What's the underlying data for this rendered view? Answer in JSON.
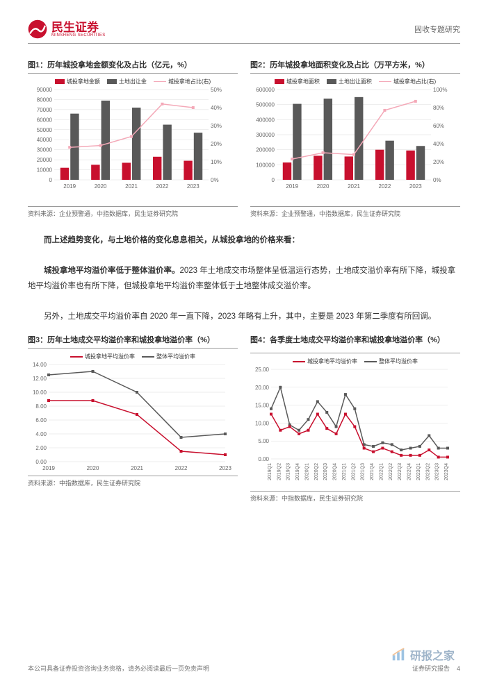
{
  "header": {
    "logo_main": "民生证券",
    "logo_sub": "MINSHENG SECURITIES",
    "right": "固收专题研究"
  },
  "chart1": {
    "title": "图1：历年城投拿地金额变化及占比（亿元，%）",
    "legend": [
      "城投拿地金额",
      "土地出让金",
      "城投拿地占比(右)"
    ],
    "categories": [
      "2019",
      "2020",
      "2021",
      "2022",
      "2023"
    ],
    "bar1": [
      12000,
      15000,
      17000,
      23000,
      19000
    ],
    "bar2": [
      66000,
      79000,
      72000,
      55000,
      47000
    ],
    "line": [
      18,
      19,
      24,
      42,
      40
    ],
    "yLeft": {
      "max": 90000,
      "step": 10000
    },
    "yRight": {
      "max": 50,
      "step": 10,
      "suffix": "%"
    },
    "colors": {
      "bar1": "#c8102e",
      "bar2": "#595959",
      "line": "#f4a9b8"
    },
    "source": "资料来源：企业预警通，中指数据库，民生证券研究院"
  },
  "chart2": {
    "title": "图2：历年城投拿地面积变化及占比（万平方米，%）",
    "legend": [
      "城投拿地面积",
      "土地出让面积",
      "城投拿地占比(右)"
    ],
    "categories": [
      "2019",
      "2020",
      "2021",
      "2022",
      "2023"
    ],
    "bar1": [
      115000,
      160000,
      155000,
      200000,
      195000
    ],
    "bar2": [
      505000,
      540000,
      550000,
      260000,
      225000
    ],
    "line": [
      23,
      30,
      28,
      77,
      87
    ],
    "yLeft": {
      "max": 600000,
      "step": 100000
    },
    "yRight": {
      "max": 100,
      "step": 20,
      "suffix": "%"
    },
    "colors": {
      "bar1": "#c8102e",
      "bar2": "#595959",
      "line": "#f4a9b8"
    },
    "source": "资料来源：企业预警通，中指数据库，民生证券研究院"
  },
  "body": {
    "p1": "而上述趋势变化，与土地价格的变化息息相关，从城投拿地的价格来看：",
    "p2_b": "城投拿地平均溢价率低于整体溢价率。",
    "p2_rest": "2023 年土地成交市场整体呈低温运行态势，土地成交溢价率有所下降，城投拿地平均溢价率也有所下降，但城投拿地平均溢价率整体低于土地整体成交溢价率。",
    "p3": "另外，土地成交平均溢价率自 2020 年一直下降，2023 年略有上升，其中，主要是 2023 年第二季度有所回调。"
  },
  "chart3": {
    "title": "图3：历年土地成交平均溢价率和城投拿地溢价率（%）",
    "legend": [
      "城投拿地平均溢价率",
      "整体平均溢价率"
    ],
    "categories": [
      "2019",
      "2020",
      "2021",
      "2022",
      "2023"
    ],
    "line_red": [
      8.8,
      8.8,
      6.8,
      1.5,
      1.0
    ],
    "line_gray": [
      12.5,
      13.0,
      10.0,
      3.5,
      4.0
    ],
    "y": {
      "max": 14.0,
      "step": 2.0
    },
    "colors": {
      "red": "#c8102e",
      "gray": "#595959"
    },
    "source": "资料来源：中指数据库，民生证券研究院"
  },
  "chart4": {
    "title": "图4：各季度土地成交平均溢价率和城投拿地溢价率（%）",
    "legend": [
      "城投拿地平均溢价率",
      "整体平均溢价率"
    ],
    "categories": [
      "2019Q1",
      "2019Q2",
      "2019Q3",
      "2019Q4",
      "2020Q1",
      "2020Q2",
      "2020Q3",
      "2020Q4",
      "2021Q1",
      "2021Q2",
      "2021Q3",
      "2021Q4",
      "2022Q1",
      "2022Q2",
      "2022Q3",
      "2022Q4",
      "2023Q1",
      "2023Q2",
      "2023Q3",
      "2023Q4"
    ],
    "line_red": [
      12.5,
      8.0,
      9.0,
      7.0,
      8.0,
      12.5,
      8.5,
      7.0,
      12.5,
      9.0,
      3.0,
      2.0,
      3.0,
      2.0,
      1.0,
      1.0,
      1.0,
      2.5,
      0.5,
      0.5
    ],
    "line_gray": [
      14.0,
      20.0,
      9.5,
      8.0,
      11.0,
      16.0,
      13.0,
      9.0,
      18.0,
      14.0,
      4.0,
      3.5,
      4.5,
      4.0,
      2.5,
      3.0,
      3.5,
      6.5,
      3.0,
      3.0
    ],
    "y": {
      "max": 25.0,
      "step": 5.0
    },
    "colors": {
      "red": "#c8102e",
      "gray": "#595959"
    },
    "source": "资料来源：中指数据库，民生证券研究院"
  },
  "watermark": {
    "text": "研报之家"
  },
  "footer": {
    "left": "本公司具备证券投资咨询业务资格，请务必阅读最后一页免责声明",
    "right_a": "证券研究报告",
    "right_b": "4"
  }
}
